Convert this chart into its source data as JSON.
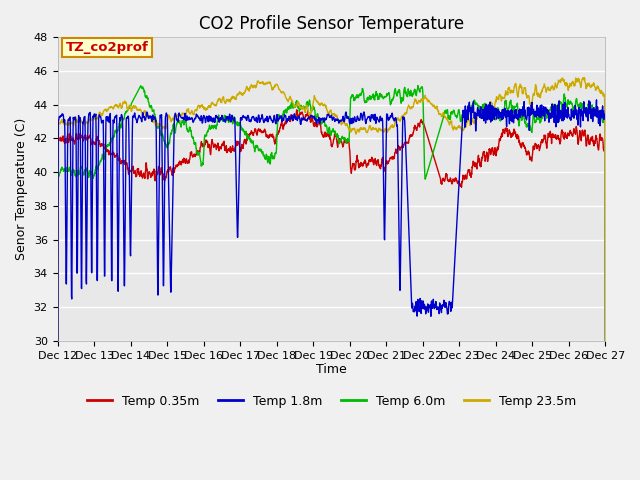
{
  "title": "CO2 Profile Sensor Temperature",
  "xlabel": "Time",
  "ylabel": "Senor Temperature (C)",
  "ylim": [
    30,
    48
  ],
  "ytick_values": [
    30,
    32,
    34,
    36,
    38,
    40,
    42,
    44,
    46,
    48
  ],
  "legend_entries": [
    "Temp 0.35m",
    "Temp 1.8m",
    "Temp 6.0m",
    "Temp 23.5m"
  ],
  "legend_colors": [
    "#cc0000",
    "#0000cc",
    "#00bb00",
    "#ccaa00"
  ],
  "annotation_text": "TZ_co2prof",
  "annotation_bg": "#ffffcc",
  "annotation_border": "#cc8800",
  "annotation_text_color": "#cc0000",
  "fig_bg": "#f0f0f0",
  "plot_bg": "#e8e8e8",
  "grid_color": "#ffffff",
  "title_fontsize": 12,
  "axis_label_fontsize": 9,
  "tick_fontsize": 8,
  "legend_fontsize": 9,
  "line_width": 1.0
}
